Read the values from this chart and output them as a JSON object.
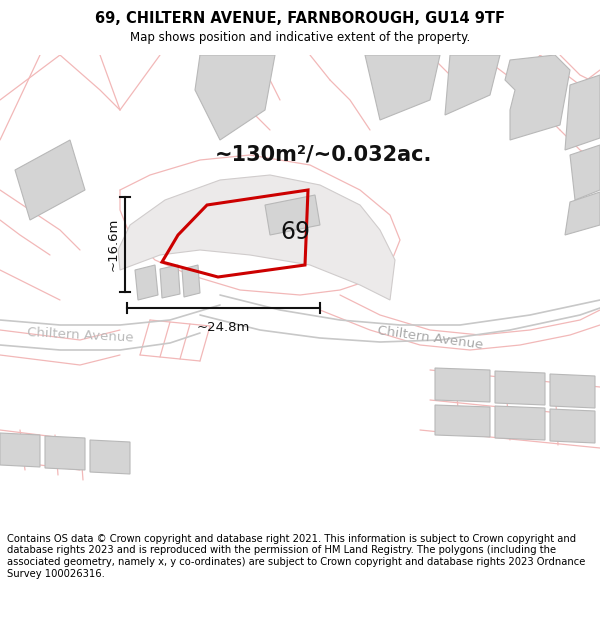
{
  "title": "69, CHILTERN AVENUE, FARNBOROUGH, GU14 9TF",
  "subtitle": "Map shows position and indicative extent of the property.",
  "footer": "Contains OS data © Crown copyright and database right 2021. This information is subject to Crown copyright and database rights 2023 and is reproduced with the permission of HM Land Registry. The polygons (including the associated geometry, namely x, y co-ordinates) are subject to Crown copyright and database rights 2023 Ordnance Survey 100026316.",
  "area_label": "~130m²/~0.032ac.",
  "dim_h": "~16.6m",
  "dim_w": "~24.8m",
  "label_69": "69",
  "street_label_right": "Chiltern Avenue",
  "street_label_left": "Chiltern Avenue",
  "background_color": "#ffffff",
  "map_bg": "#f9f5f5",
  "road_color_light": "#f2b8b8",
  "road_color_gray": "#c8c8c8",
  "building_fill": "#d4d4d4",
  "building_edge": "#b8b8b8",
  "plot_fill": "#e8e4e4",
  "plot_edge": "#c8c4c4",
  "plot_color": "#cc0000",
  "plot_linewidth": 2.2,
  "dim_color": "#111111",
  "title_fontsize": 10.5,
  "subtitle_fontsize": 8.5,
  "footer_fontsize": 7.2,
  "area_fontsize": 15,
  "label_fontsize": 17,
  "street_fontsize": 9.5,
  "dim_fontsize": 9.5
}
